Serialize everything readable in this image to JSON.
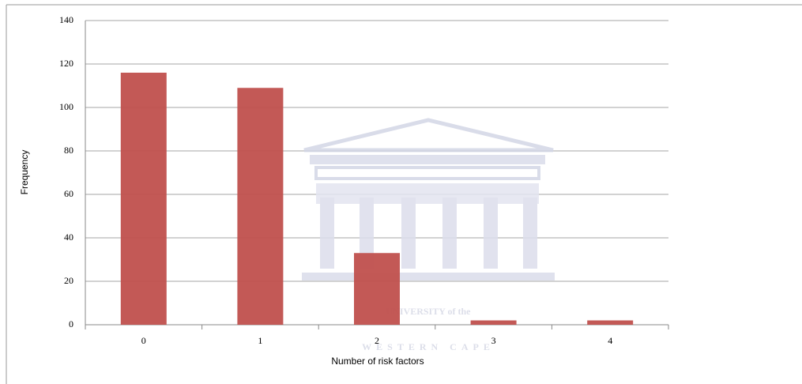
{
  "watermark": [
    "UNIVERSITY of the",
    "WESTERN CAPE"
  ],
  "chart_data": {
    "type": "bar",
    "x_label": "Number of risk factors",
    "y_label": "Frequency",
    "categories": [
      "0",
      "1",
      "2",
      "3",
      "4"
    ],
    "values": [
      116,
      109,
      33,
      2,
      2
    ],
    "color": "#c0504d",
    "ylim": [
      0,
      140
    ],
    "yticks": [
      0,
      20,
      40,
      60,
      80,
      100,
      120,
      140
    ],
    "grid": true
  }
}
